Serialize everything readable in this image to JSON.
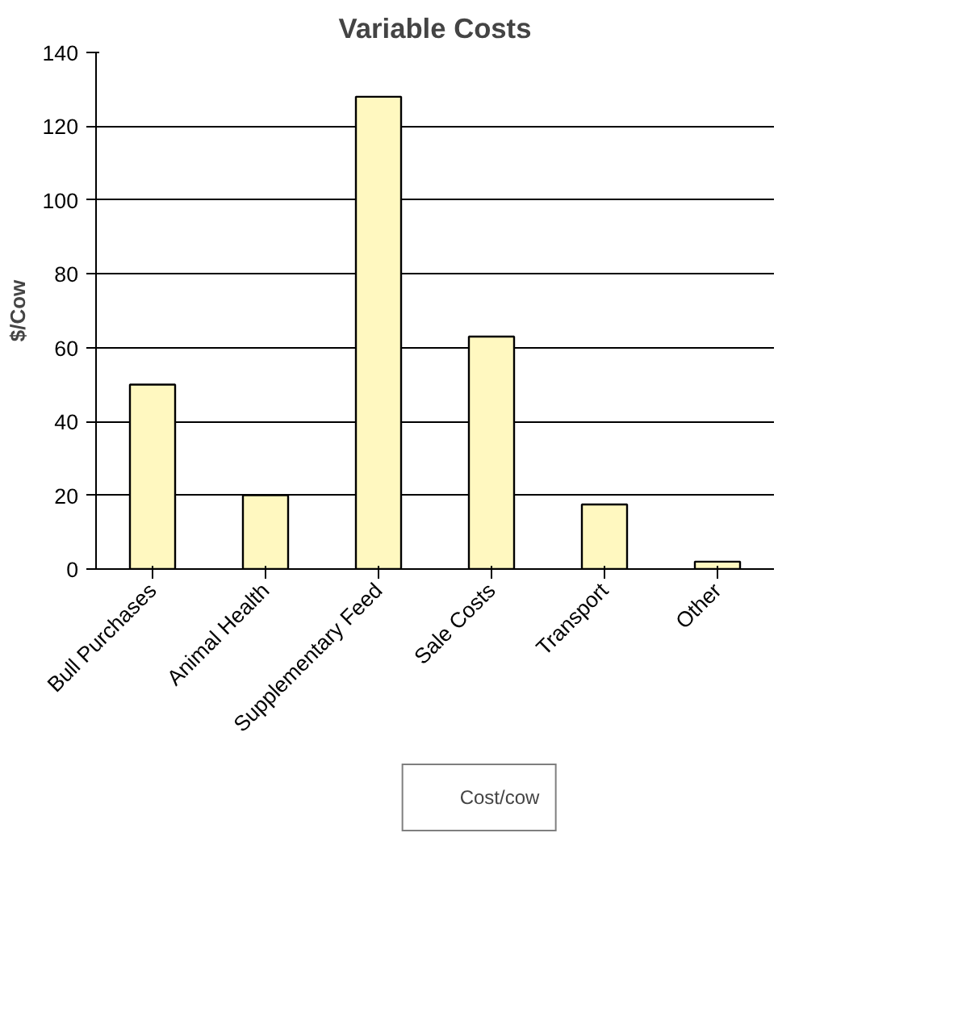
{
  "chart_data": {
    "type": "bar",
    "title": "Variable Costs",
    "ylabel": "$/Cow",
    "categories": [
      "Bull Purchases",
      "Animal Health",
      "Supplementary Feed",
      "Sale Costs",
      "Transport",
      "Other"
    ],
    "series": [
      {
        "name": "Cost/cow",
        "color": "#fff8c0",
        "values": [
          50,
          20,
          128,
          63,
          17.5,
          2
        ]
      }
    ],
    "ylim": [
      0,
      140
    ],
    "yticks": [
      0,
      20,
      40,
      60,
      80,
      100,
      120,
      140
    ],
    "grid": "y",
    "legend": "bottom"
  }
}
